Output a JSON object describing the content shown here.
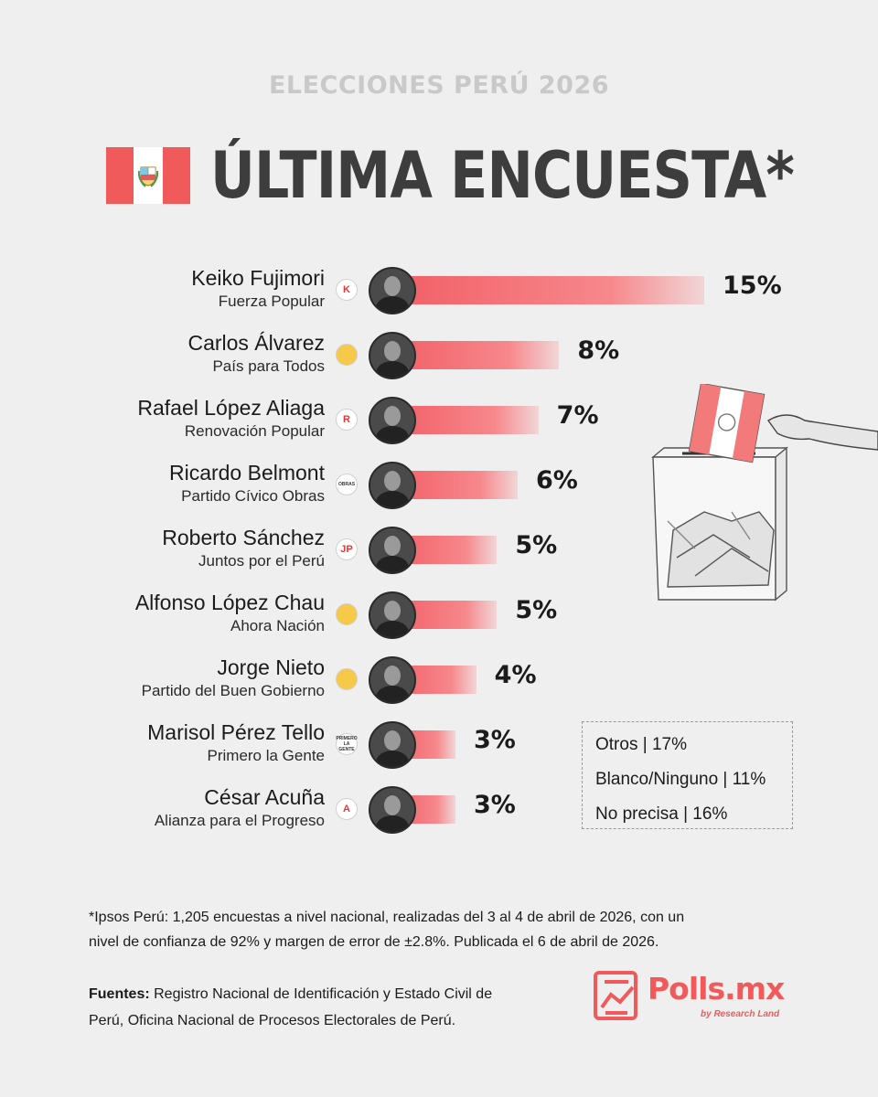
{
  "header": {
    "kicker": "ELECCIONES PERÚ 2026",
    "title": "ÚLTIMA ENCUESTA*"
  },
  "colors": {
    "accent": "#f15a5a",
    "bar": "#f25f66",
    "text": "#1b1b1b",
    "kicker": "#c9c9c9",
    "title": "#3d3d3d",
    "background": "#efefef"
  },
  "chart_data": {
    "type": "bar",
    "orientation": "horizontal",
    "title": "ÚLTIMA ENCUESTA*",
    "unit": "%",
    "categories": [
      "Keiko Fujimori",
      "Carlos Álvarez",
      "Rafael López Aliaga",
      "Ricardo Belmont",
      "Roberto Sánchez",
      "Alfonso López Chau",
      "Jorge Nieto",
      "Marisol Pérez Tello",
      "César Acuña"
    ],
    "values": [
      15,
      8,
      7,
      6,
      5,
      5,
      4,
      3,
      3
    ],
    "value_labels": [
      "15%",
      "8%",
      "7%",
      "6%",
      "5%",
      "5%",
      "4%",
      "3%",
      "3%"
    ],
    "parties": [
      "Fuerza Popular",
      "País para Todos",
      "Renovación Popular",
      "Partido Cívico Obras",
      "Juntos por el Perú",
      "Ahora Nación",
      "Partido del Buen Gobierno",
      "Primero la Gente",
      "Alianza para el Progreso"
    ],
    "party_logo_text": [
      "K",
      "",
      "R",
      "OBRAS",
      "JP",
      "",
      "",
      "PRIMERO LA GENTE",
      "A"
    ],
    "grid": false,
    "legend": "none"
  },
  "others": [
    {
      "label": "Otros | 17%"
    },
    {
      "label": "Blanco/Ninguno | 11%"
    },
    {
      "label": "No precisa | 16%"
    }
  ],
  "footnote": "*Ipsos Perú: 1,205 encuestas a nivel nacional, realizadas del 3 al 4 de abril de 2026, con un nivel de confianza de 92% y margen de error de ±2.8%. Publicada el 6 de abril de 2026.",
  "sources": {
    "label": "Fuentes:",
    "text": "Registro Nacional de Identificación y Estado Civil de Perú, Oficina Nacional de Procesos Electorales de Perú."
  },
  "brand": {
    "name": "Polls.mx",
    "sub": "by Research Land"
  },
  "icons": {
    "flag": "peru-flag-icon",
    "ballot": "ballot-box-illustration",
    "brand": "polls-mx-logo-icon"
  }
}
